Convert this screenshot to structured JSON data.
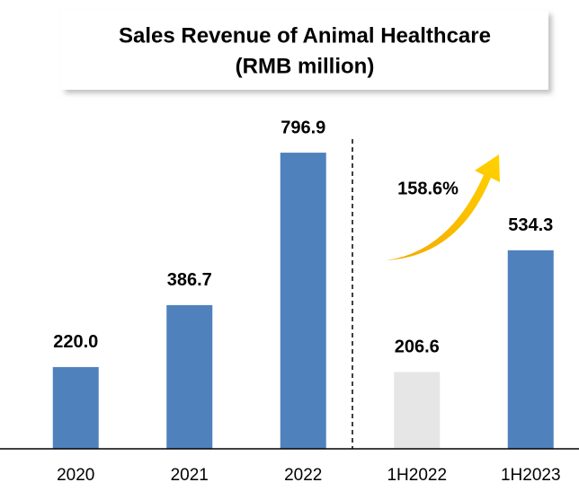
{
  "chart_data": {
    "type": "bar",
    "title": "Sales Revenue of Animal Healthcare",
    "subtitle": "(RMB million)",
    "categories": [
      "2020",
      "2021",
      "2022",
      "1H2022",
      "1H2023"
    ],
    "values": [
      220.0,
      386.7,
      796.9,
      206.6,
      534.3
    ],
    "value_labels": [
      "220.0",
      "386.7",
      "796.9",
      "206.6",
      "534.3"
    ],
    "colors": [
      "#4f81bd",
      "#4f81bd",
      "#4f81bd",
      "#e6e6e6",
      "#4f81bd"
    ],
    "annotation": "158.6%"
  }
}
